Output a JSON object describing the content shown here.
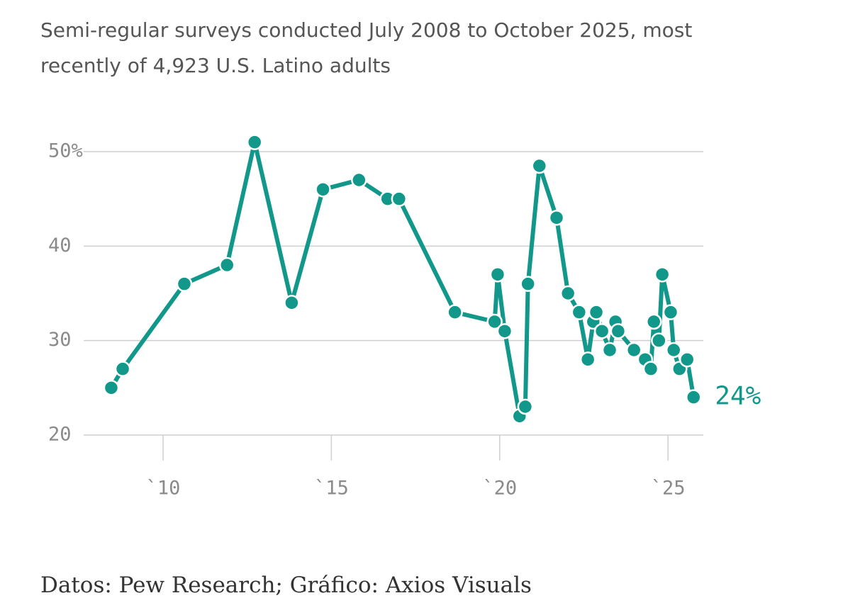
{
  "chart_data": {
    "type": "line",
    "subtitle": [
      "Semi-regular surveys conducted July 2008 to October 2025, most",
      "recently of 4,923 U.S. Latino adults"
    ],
    "source": "Datos: Pew Research; Gráfico: Axios Visuals",
    "x": [
      2008.46,
      2008.8,
      2010.63,
      2011.9,
      2012.72,
      2013.82,
      2014.75,
      2015.82,
      2016.67,
      2017.01,
      2018.67,
      2019.85,
      2019.94,
      2020.15,
      2020.59,
      2020.76,
      2020.84,
      2021.18,
      2021.69,
      2022.03,
      2022.36,
      2022.62,
      2022.78,
      2022.87,
      2023.04,
      2023.27,
      2023.44,
      2023.52,
      2023.99,
      2024.32,
      2024.49,
      2024.58,
      2024.73,
      2024.83,
      2025.08,
      2025.17,
      2025.34,
      2025.57,
      2025.76
    ],
    "series": [
      {
        "color": "#12988a",
        "values": [
          25,
          27,
          36,
          38,
          51,
          34,
          46,
          47,
          45,
          45,
          33,
          32,
          37,
          31,
          22,
          23,
          36,
          48.5,
          43,
          35,
          33,
          28,
          32,
          33,
          31,
          29,
          32,
          31,
          29,
          28,
          27,
          32,
          30,
          37,
          33,
          29,
          27,
          28,
          24
        ],
        "value_labels": [
          null,
          null,
          null,
          null,
          null,
          null,
          null,
          null,
          null,
          null,
          null,
          null,
          null,
          null,
          null,
          null,
          null,
          null,
          null,
          null,
          null,
          null,
          null,
          null,
          null,
          null,
          null,
          null,
          null,
          null,
          null,
          null,
          null,
          null,
          null,
          null,
          null,
          null,
          "24%"
        ]
      }
    ],
    "xlim": [
      2007.64,
      2026.05
    ],
    "xticks": [
      {
        "value": 2010,
        "label": "`10"
      },
      {
        "value": 2015,
        "label": "`15"
      },
      {
        "value": 2020,
        "label": "`20"
      },
      {
        "value": 2025,
        "label": "`25"
      }
    ],
    "ylim": [
      20,
      50
    ],
    "yticks": [
      {
        "value": 50,
        "label": "50%"
      },
      40,
      30,
      20
    ],
    "grid": true
  }
}
